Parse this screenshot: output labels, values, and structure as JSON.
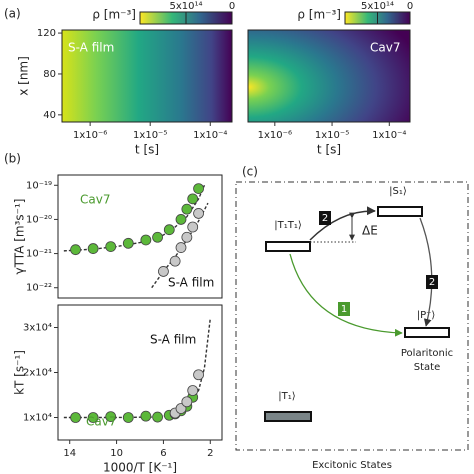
{
  "chart_data": [
    {
      "type": "heatmap",
      "panel": "(a)",
      "annotation": "S-A film",
      "xlabel": "t [s]",
      "ylabel": "x [nm]",
      "xscale": "log",
      "xlim": [
        3.4e-07,
        0.00023
      ],
      "xticks": [
        {
          "value": 1e-06,
          "label": "1x10⁻⁶"
        },
        {
          "value": 1e-05,
          "label": "1x10⁻⁵"
        },
        {
          "value": 0.0001,
          "label": "1x10⁻⁴"
        }
      ],
      "ylim": [
        33,
        123
      ],
      "yticks": [
        40,
        80,
        120
      ],
      "colorbar": {
        "label": "ρ [m⁻³]",
        "lim": [
          1000000000000000.0,
          0
        ],
        "ticks": [
          {
            "value": 500000000000000.0,
            "label": "5x10¹⁴"
          },
          0
        ]
      }
    },
    {
      "type": "heatmap",
      "annotation": "Cav7",
      "xlabel": "t [s]",
      "xscale": "log",
      "xlim": [
        3.4e-07,
        0.00023
      ],
      "xticks": [
        {
          "value": 1e-06,
          "label": "1x10⁻⁶"
        },
        {
          "value": 1e-05,
          "label": "1x10⁻⁵"
        },
        {
          "value": 0.0001,
          "label": "1x10⁻⁴"
        }
      ],
      "colorbar": {
        "label": "ρ [m⁻³]",
        "lim": [
          1000000000000000.0,
          0
        ],
        "ticks": [
          {
            "value": 500000000000000.0,
            "label": "5x10¹⁴"
          },
          0
        ]
      }
    },
    {
      "type": "scatter",
      "panel": "(b)",
      "ylabel": "γTTA [m³s⁻¹]",
      "yscale": "log",
      "xlim": [
        15,
        1
      ],
      "ylim": [
        5e-23,
        2e-19
      ],
      "yticks": [
        {
          "value": 1e-22,
          "label": "10⁻²²"
        },
        {
          "value": 1e-21,
          "label": "10⁻²¹"
        },
        {
          "value": 1e-20,
          "label": "10⁻²⁰"
        },
        {
          "value": 1e-19,
          "label": "10⁻¹⁹"
        }
      ],
      "series": [
        {
          "name": "Cav7",
          "color": "#5cb83a",
          "mode": "markers",
          "x": [
            13.5,
            12,
            10.5,
            9,
            7.5,
            6.5,
            5.5,
            4.5,
            4,
            3.5,
            3
          ],
          "values": [
            1.3e-21,
            1.4e-21,
            1.6e-21,
            2e-21,
            2.5e-21,
            3e-21,
            5e-21,
            1e-20,
            2e-20,
            4e-20,
            8e-20
          ]
        },
        {
          "name": "S-A film",
          "color": "#c8c8c8",
          "mode": "markers",
          "x": [
            6,
            5,
            4.5,
            4,
            3.5,
            3
          ],
          "values": [
            3e-22,
            6e-22,
            1.5e-21,
            3e-21,
            6e-21,
            1.5e-20
          ]
        },
        {
          "color": "#333333",
          "mode": "line",
          "x": [
            14.5,
            12,
            10,
            8,
            6,
            5,
            4,
            3,
            2.5
          ],
          "values": [
            1.2e-21,
            1.35e-21,
            1.6e-21,
            2.1e-21,
            3.5e-21,
            6e-21,
            1.2e-20,
            4e-20,
            1e-19
          ]
        },
        {
          "color": "#333333",
          "mode": "line",
          "x": [
            7,
            6,
            5,
            4,
            3,
            2.2
          ],
          "values": [
            1e-22,
            3e-22,
            8e-22,
            2.5e-21,
            9e-21,
            3e-20
          ]
        }
      ]
    },
    {
      "type": "scatter",
      "xlabel": "1000/T [K⁻¹]",
      "ylabel": "kT [s⁻¹]",
      "xlim": [
        15,
        1
      ],
      "ylim": [
        5000,
        35000
      ],
      "xticks": [
        14,
        10,
        6,
        2
      ],
      "yticks": [
        {
          "value": 10000,
          "label": "1x10⁴"
        },
        {
          "value": 20000,
          "label": "2x10⁴"
        },
        {
          "value": 30000,
          "label": "3x10⁴"
        }
      ],
      "series": [
        {
          "name": "Cav7",
          "color": "#5cb83a",
          "mode": "markers",
          "x": [
            13.5,
            12,
            10.5,
            9,
            7.5,
            6.5,
            5.5,
            5,
            4.5,
            4,
            3.5
          ],
          "values": [
            10000,
            10000,
            10200,
            10000,
            10300,
            10100,
            10500,
            10800,
            11500,
            12500,
            14500
          ]
        },
        {
          "name": "S-A film",
          "color": "#c8c8c8",
          "mode": "markers",
          "x": [
            5,
            4.5,
            4,
            3.5,
            3
          ],
          "values": [
            11000,
            12000,
            13500,
            16000,
            19500
          ]
        },
        {
          "color": "#333333",
          "mode": "line",
          "x": [
            14.5,
            10,
            7,
            5,
            4,
            3,
            2.5,
            2
          ],
          "values": [
            10000,
            10000,
            10100,
            10600,
            12000,
            16000,
            21000,
            32000
          ]
        }
      ]
    }
  ],
  "diagram": {
    "panel": "(c)",
    "levels": [
      "|T₁T₁⟩",
      "|S₁⟩",
      "|P⁻⟩",
      "|T₁⟩"
    ],
    "steps": [
      "2",
      "2",
      "1"
    ],
    "gap": "ΔE",
    "polariton_label": [
      "Polaritonic",
      "State"
    ],
    "exciton_label": "Excitonic States"
  }
}
